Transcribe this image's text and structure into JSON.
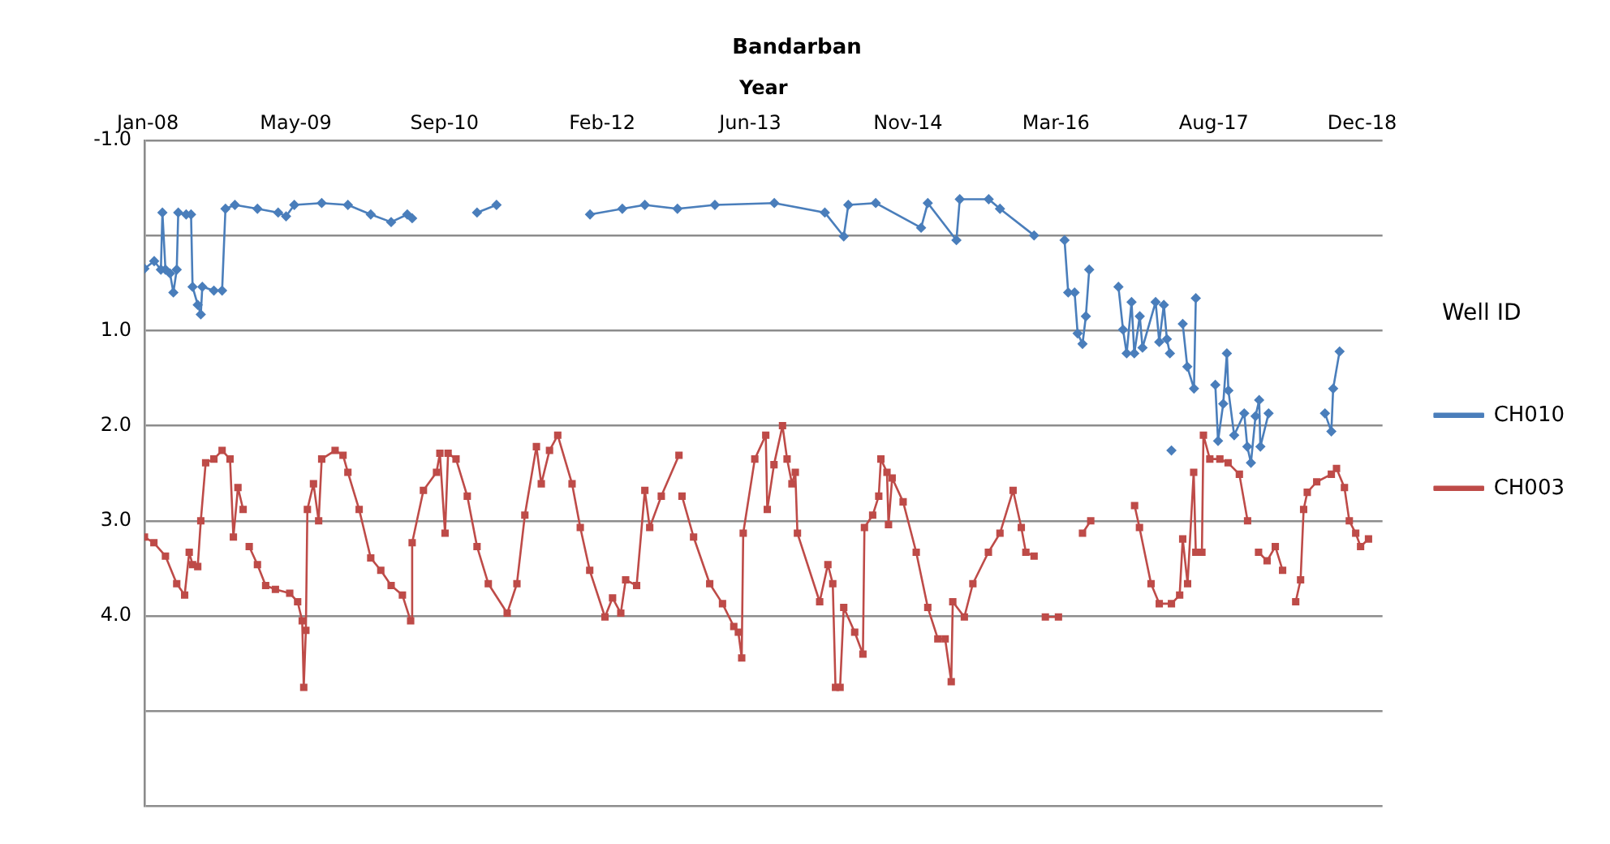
{
  "chart_data": {
    "type": "line",
    "title": "Bandarban",
    "xlabel": "Year",
    "legend_title": "Well ID",
    "legend": "right",
    "grid": "y",
    "xlim": [
      "2007-12-21",
      "2019-02-06"
    ],
    "xticks": [
      {
        "value": "2008-01-01",
        "label": "Jan-08"
      },
      {
        "value": "2009-05-01",
        "label": "May-09"
      },
      {
        "value": "2010-09-01",
        "label": "Sep-10"
      },
      {
        "value": "2012-02-01",
        "label": "Feb-12"
      },
      {
        "value": "2013-06-01",
        "label": "Jun-13"
      },
      {
        "value": "2014-11-01",
        "label": "Nov-14"
      },
      {
        "value": "2016-03-01",
        "label": "Mar-16"
      },
      {
        "value": "2017-08-01",
        "label": "Aug-17"
      },
      {
        "value": "2018-12-01",
        "label": "Dec-18"
      }
    ],
    "ylim": [
      6,
      -1
    ],
    "yticks": [
      {
        "value": -1,
        "label": "-1.0"
      },
      {
        "value": 0,
        "label": null
      },
      {
        "value": 1,
        "label": "1.0"
      },
      {
        "value": 2,
        "label": "2.0"
      },
      {
        "value": 3,
        "label": "3.0"
      },
      {
        "value": 4,
        "label": "4.0"
      },
      {
        "value": 5,
        "label": null
      },
      {
        "value": 6,
        "label": null
      }
    ],
    "series": [
      {
        "name": "CH010",
        "color": "#4a7ebb",
        "marker": "diamond",
        "x": [
          "2007-12-21",
          "2008-01-22",
          "2008-02-13",
          "2008-02-18",
          "2008-02-28",
          "2008-03-14",
          "2008-03-25",
          "2008-04-05",
          "2008-04-10",
          "2008-05-06",
          "2008-05-22",
          "2008-05-27",
          "2008-06-13",
          "2008-06-23",
          "2008-06-28",
          "2008-08-05",
          "2008-09-01",
          "2008-09-12",
          "2008-10-13",
          "2008-12-26",
          "2009-03-04",
          "2009-03-30",
          "2009-04-26",
          "2009-07-25",
          "2009-10-19",
          "2010-01-02",
          "2010-03-10",
          "2010-05-02",
          "2010-05-18",
          "2010-09-01",
          "2010-12-17",
          "2011-02-19",
          "2011-08-01",
          "2011-12-23",
          "2012-04-07",
          "2012-06-20",
          "2012-10-05",
          "2013-02-05",
          "2013-08-19",
          "2014-02-01",
          "2014-04-04",
          "2014-04-19",
          "2014-07-18",
          "2014-12-14",
          "2015-01-05",
          "2015-04-09",
          "2015-04-20",
          "2015-07-24",
          "2015-08-30",
          "2015-12-20",
          "2016-02-01",
          "2016-03-29",
          "2016-04-10",
          "2016-05-01",
          "2016-05-11",
          "2016-05-27",
          "2016-06-07",
          "2016-06-18",
          "2016-08-01",
          "2016-09-22",
          "2016-10-07",
          "2016-10-19",
          "2016-11-04",
          "2016-11-13",
          "2016-12-01",
          "2016-12-10",
          "2017-01-22",
          "2017-02-03",
          "2017-02-18",
          "2017-02-28",
          "2017-03-10",
          "2017-03-12",
          "2017-03-15",
          "2017-03-18",
          "2017-04-21",
          "2017-05-06",
          "2017-05-28",
          "2017-06-03",
          "2017-07-01",
          "2017-08-06",
          "2017-08-15",
          "2017-09-01",
          "2017-09-13",
          "2017-09-18",
          "2017-10-07",
          "2017-11-09",
          "2017-11-19",
          "2017-12-01",
          "2017-12-16",
          "2017-12-28",
          "2018-01-01",
          "2018-01-28",
          "2018-05-01",
          "2018-08-01",
          "2018-08-22",
          "2018-08-28",
          "2018-09-18"
        ],
        "values": [
          0.35,
          0.27,
          0.36,
          -0.24,
          0.36,
          0.4,
          0.6,
          0.36,
          -0.24,
          -0.22,
          -0.22,
          0.54,
          0.73,
          0.83,
          0.54,
          0.58,
          0.58,
          -0.28,
          -0.32,
          -0.28,
          -0.24,
          -0.2,
          -0.32,
          -0.34,
          -0.32,
          -0.22,
          -0.14,
          -0.22,
          -0.18,
          null,
          -0.24,
          -0.32,
          null,
          -0.22,
          -0.28,
          -0.32,
          -0.28,
          -0.32,
          -0.34,
          -0.24,
          0.01,
          -0.32,
          -0.34,
          -0.08,
          -0.34,
          0.05,
          -0.38,
          -0.38,
          -0.28,
          0.0,
          null,
          0.05,
          0.6,
          0.6,
          1.03,
          1.14,
          0.85,
          0.36,
          null,
          0.54,
          0.99,
          1.24,
          0.7,
          1.24,
          0.85,
          1.18,
          0.7,
          1.12,
          0.73,
          1.09,
          1.24,
          null,
          2.26,
          null,
          0.93,
          1.38,
          1.61,
          0.66,
          null,
          1.57,
          2.16,
          1.77,
          1.24,
          1.63,
          2.1,
          1.87,
          2.22,
          2.39,
          1.9,
          1.73,
          2.22,
          1.87,
          null,
          1.87,
          2.06,
          1.61,
          1.22
        ]
      },
      {
        "name": "CH003",
        "color": "#be4b48",
        "marker": "square",
        "x": [
          "2007-12-21",
          "2008-01-21",
          "2008-02-28",
          "2008-04-05",
          "2008-05-01",
          "2008-05-16",
          "2008-05-27",
          "2008-06-13",
          "2008-06-23",
          "2008-07-09",
          "2008-08-05",
          "2008-09-01",
          "2008-09-27",
          "2008-10-08",
          "2008-10-23",
          "2008-11-09",
          "2008-11-19",
          "2008-11-29",
          "2008-12-26",
          "2009-01-22",
          "2009-02-23",
          "2009-04-11",
          "2009-05-07",
          "2009-05-22",
          "2009-05-27",
          "2009-06-03",
          "2009-06-08",
          "2009-06-28",
          "2009-07-15",
          "2009-07-25",
          "2009-09-07",
          "2009-10-03",
          "2009-10-19",
          "2009-11-25",
          "2010-01-02",
          "2010-02-04",
          "2010-03-10",
          "2010-04-16",
          "2010-05-13",
          "2010-05-18",
          "2010-06-24",
          "2010-08-06",
          "2010-08-17",
          "2010-09-03",
          "2010-09-13",
          "2010-10-09",
          "2010-11-15",
          "2010-12-17",
          "2011-01-23",
          "2011-03-26",
          "2011-04-27",
          "2011-05-23",
          "2011-06-30",
          "2011-07-16",
          "2011-08-12",
          "2011-09-08",
          "2011-10-25",
          "2011-11-21",
          "2011-12-22",
          "2012-02-10",
          "2012-03-06",
          "2012-04-02",
          "2012-04-18",
          "2012-05-24",
          "2012-06-20",
          "2012-07-06",
          "2012-08-13",
          "2012-10-10",
          "2012-10-15",
          "2012-10-20",
          "2012-11-27",
          "2013-01-19",
          "2013-03-02",
          "2013-04-08",
          "2013-04-23",
          "2013-05-04",
          "2013-05-09",
          "2013-06-16",
          "2013-07-22",
          "2013-07-27",
          "2013-08-18",
          "2013-09-15",
          "2013-09-30",
          "2013-10-16",
          "2013-10-27",
          "2013-11-03",
          "2014-01-15",
          "2014-02-11",
          "2014-02-27",
          "2014-03-08",
          "2014-03-23",
          "2014-04-04",
          "2014-05-10",
          "2014-06-06",
          "2014-06-11",
          "2014-07-08",
          "2014-07-28",
          "2014-08-04",
          "2014-08-24",
          "2014-08-29",
          "2014-09-10",
          "2014-10-16",
          "2014-11-28",
          "2015-01-05",
          "2015-02-07",
          "2015-03-03",
          "2015-03-23",
          "2015-03-28",
          "2015-05-05",
          "2015-06-02",
          "2015-07-23",
          "2015-08-30",
          "2015-10-12",
          "2015-11-08",
          "2015-11-23",
          "2015-12-20",
          "2016-01-05",
          "2016-01-26",
          "2016-03-09",
          "2016-04-20",
          "2016-05-27",
          "2016-06-23",
          "2016-09-01",
          "2016-11-14",
          "2016-11-30",
          "2017-01-07",
          "2017-02-03",
          "2017-03-15",
          "2017-04-11",
          "2017-04-21",
          "2017-05-07",
          "2017-05-27",
          "2017-06-03",
          "2017-06-23",
          "2017-06-28",
          "2017-07-19",
          "2017-08-21",
          "2017-09-17",
          "2017-10-24",
          "2017-11-20",
          "2017-12-10",
          "2017-12-26",
          "2018-01-23",
          "2018-02-19",
          "2018-03-15",
          "2018-04-10",
          "2018-04-27",
          "2018-05-13",
          "2018-05-23",
          "2018-06-04",
          "2018-07-05",
          "2018-08-22",
          "2018-09-08",
          "2018-10-04",
          "2018-10-20",
          "2018-11-10",
          "2018-11-26",
          "2018-12-22"
        ],
        "values": [
          3.17,
          3.23,
          3.37,
          3.66,
          3.78,
          3.33,
          3.46,
          3.48,
          3.0,
          2.39,
          2.35,
          2.26,
          2.35,
          3.17,
          2.65,
          2.88,
          null,
          3.27,
          3.46,
          3.68,
          3.72,
          3.76,
          3.85,
          4.05,
          4.75,
          4.15,
          2.88,
          2.61,
          3.0,
          2.35,
          2.26,
          2.31,
          2.49,
          2.88,
          3.39,
          3.52,
          3.68,
          3.78,
          4.05,
          3.23,
          2.68,
          2.49,
          2.29,
          3.13,
          2.29,
          2.35,
          2.74,
          3.27,
          3.66,
          3.97,
          3.66,
          2.94,
          2.22,
          2.61,
          2.26,
          2.1,
          2.61,
          3.07,
          3.52,
          4.01,
          3.81,
          3.97,
          3.62,
          3.68,
          2.68,
          3.07,
          2.74,
          2.31,
          null,
          2.74,
          3.17,
          3.66,
          3.87,
          4.11,
          4.17,
          4.44,
          3.13,
          2.35,
          2.1,
          2.88,
          2.41,
          2.0,
          2.35,
          2.61,
          2.49,
          3.13,
          3.85,
          3.46,
          3.66,
          4.75,
          4.75,
          3.91,
          4.17,
          4.4,
          3.07,
          2.94,
          2.74,
          2.35,
          2.49,
          3.04,
          2.55,
          2.8,
          3.33,
          3.91,
          4.24,
          4.24,
          4.69,
          3.85,
          4.01,
          3.66,
          3.33,
          3.13,
          2.68,
          3.07,
          3.33,
          3.37,
          null,
          4.01,
          4.01,
          null,
          3.13,
          3.0,
          null,
          2.84,
          3.07,
          3.66,
          3.87,
          3.87,
          3.78,
          3.19,
          3.66,
          2.49,
          3.33,
          3.33,
          2.1,
          2.35,
          2.35,
          2.39,
          2.51,
          3.0,
          null,
          3.33,
          3.42,
          3.27,
          3.52,
          null,
          3.85,
          3.62,
          2.88,
          2.7,
          2.59,
          2.51,
          2.45,
          2.65,
          3.0,
          3.13,
          3.27,
          3.19
        ]
      }
    ]
  }
}
